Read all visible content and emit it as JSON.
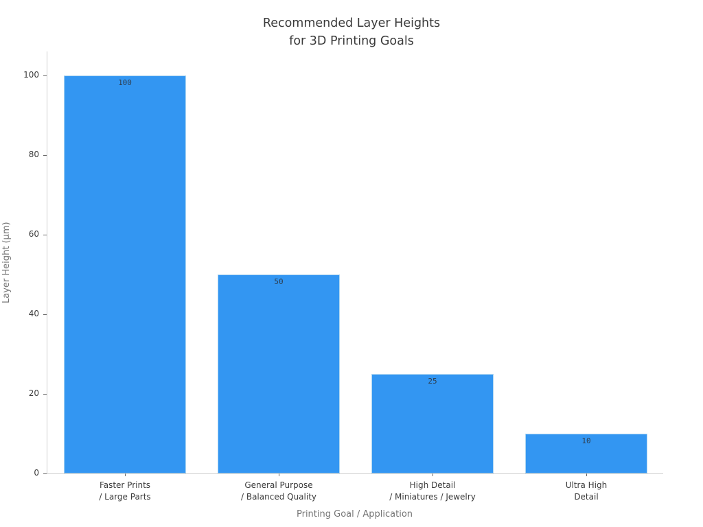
{
  "title": {
    "line1": "Recommended Layer Heights",
    "line2": "for 3D Printing Goals"
  },
  "chart_data": {
    "type": "bar",
    "categories": [
      [
        "Faster Prints",
        "/ Large Parts"
      ],
      [
        "General Purpose",
        "/ Balanced Quality"
      ],
      [
        "High Detail",
        "/ Miniatures / Jewelry"
      ],
      [
        "Ultra High",
        "Detail"
      ]
    ],
    "values": [
      100,
      50,
      25,
      10
    ],
    "bar_labels": [
      "100",
      "50",
      "25",
      "10"
    ],
    "title": "Recommended Layer Heights for 3D Printing Goals",
    "xlabel": "Printing Goal / Application",
    "ylabel": "Layer Height (μm)",
    "yticks": [
      0,
      20,
      40,
      60,
      80,
      100
    ],
    "ylim": [
      0,
      106
    ],
    "grid": false,
    "legend": null,
    "bar_color": "#3396f2",
    "bar_edge_color": "#aed6f1",
    "value_label_color": "#2d3e50"
  }
}
